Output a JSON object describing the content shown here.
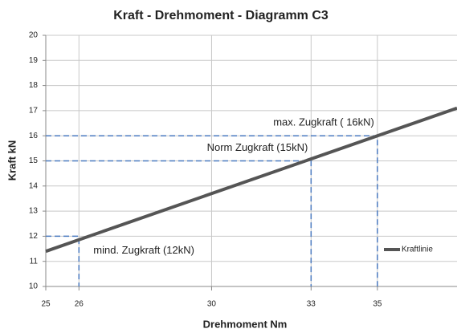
{
  "chart_data": {
    "type": "line",
    "title": "Kraft - Drehmoment - Diagramm C3",
    "x_label": "Drehmoment  Nm",
    "y_label": "Kraft  kN",
    "xlim": [
      25,
      37.4
    ],
    "xticks": [
      25,
      26,
      30,
      33,
      35
    ],
    "ylim": [
      10,
      20
    ],
    "yticks": [
      10,
      11,
      12,
      13,
      14,
      15,
      16,
      17,
      18,
      19,
      20
    ],
    "grid": true,
    "legend": "right",
    "series": [
      {
        "name": "Kraftlinie",
        "color": "#555555",
        "x": [
          25,
          37.4
        ],
        "values": [
          11.4,
          17.1
        ]
      }
    ],
    "annotations": [
      {
        "label": "max. Zugkraft ( 16kN)",
        "x": 35,
        "y": 16
      },
      {
        "label": "Norm Zugkraft (15kN)",
        "x": 33,
        "y": 15
      },
      {
        "label": "mind. Zugkraft (12kN)",
        "x": 26,
        "y": 12
      }
    ],
    "annotation_color": "#4a7ac0"
  }
}
